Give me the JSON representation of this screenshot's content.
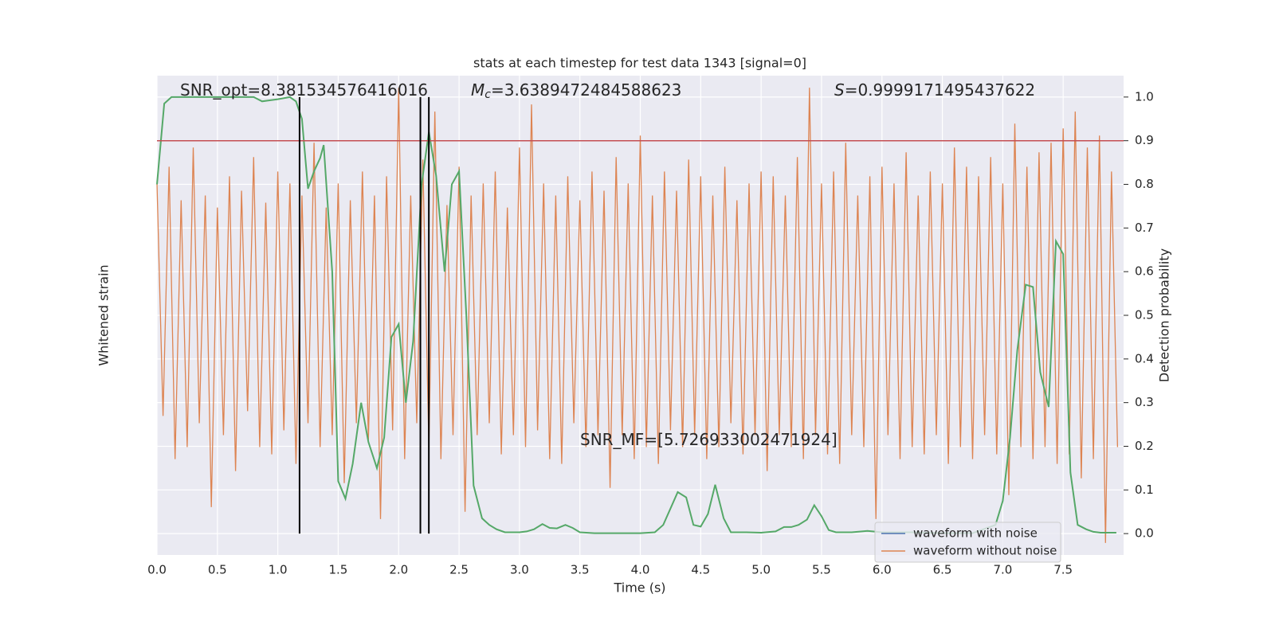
{
  "chart_data": {
    "type": "line",
    "title": "stats at each timestep for test data 1343 [signal=0]",
    "xlabel": "Time (s)",
    "ylabel": "Whitened strain",
    "y2label": "Detection probability",
    "xlim": [
      0,
      8
    ],
    "xticks": [
      {
        "value": 0,
        "label": "0.0"
      },
      0.5,
      {
        "value": 1,
        "label": "1.0"
      },
      1.5,
      {
        "value": 2,
        "label": "2.0"
      },
      2.5,
      {
        "value": 3,
        "label": "3.0"
      },
      3.5,
      {
        "value": 4,
        "label": "4.0"
      },
      4.5,
      {
        "value": 5,
        "label": "5.0"
      },
      5.5,
      {
        "value": 6,
        "label": "6.0"
      },
      6.5,
      {
        "value": 7,
        "label": "7.0"
      },
      7.5
    ],
    "ylim": [
      -1,
      1
    ],
    "y2lim": [
      -0.049,
      1.049
    ],
    "y2ticks": [
      {
        "value": 0,
        "label": "0.0"
      },
      0.1,
      0.2,
      0.3,
      0.4,
      0.5,
      0.6,
      0.7,
      0.8,
      0.9,
      {
        "value": 1,
        "label": "1.0"
      }
    ],
    "grid": true,
    "legend": "lower right",
    "series": [
      {
        "name": "waveform with noise",
        "color": "#4c72b0"
      },
      {
        "name": "waveform without noise",
        "color": "#dd8452",
        "x": [
          0,
          0.05,
          0.1,
          0.15,
          0.2,
          0.25,
          0.3,
          0.35,
          0.4,
          0.45,
          0.5,
          0.55,
          0.6,
          0.65,
          0.7,
          0.75,
          0.8,
          0.85,
          0.9,
          0.95,
          1,
          1.05,
          1.1,
          1.15,
          1.2,
          1.25,
          1.3,
          1.35,
          1.4,
          1.45,
          1.5,
          1.55,
          1.6,
          1.65,
          1.7,
          1.75,
          1.8,
          1.85,
          1.9,
          1.95,
          2,
          2.05,
          2.1,
          2.15,
          2.2,
          2.25,
          2.3,
          2.35,
          2.4,
          2.45,
          2.5,
          2.55,
          2.6,
          2.65,
          2.7,
          2.75,
          2.8,
          2.85,
          2.9,
          2.95,
          3,
          3.05,
          3.1,
          3.15,
          3.2,
          3.25,
          3.3,
          3.35,
          3.4,
          3.45,
          3.5,
          3.55,
          3.6,
          3.65,
          3.7,
          3.75,
          3.8,
          3.85,
          3.9,
          3.95,
          4,
          4.05,
          4.1,
          4.15,
          4.2,
          4.25,
          4.3,
          4.35,
          4.4,
          4.45,
          4.5,
          4.55,
          4.6,
          4.65,
          4.7,
          4.75,
          4.8,
          4.85,
          4.9,
          4.95,
          5,
          5.05,
          5.1,
          5.15,
          5.2,
          5.25,
          5.3,
          5.35,
          5.4,
          5.45,
          5.5,
          5.55,
          5.6,
          5.65,
          5.7,
          5.75,
          5.8,
          5.85,
          5.9,
          5.95,
          6,
          6.05,
          6.1,
          6.15,
          6.2,
          6.25,
          6.3,
          6.35,
          6.4,
          6.45,
          6.5,
          6.55,
          6.6,
          6.65,
          6.7,
          6.75,
          6.8,
          6.85,
          6.9,
          6.95,
          7,
          7.05,
          7.1,
          7.15,
          7.2,
          7.25,
          7.3,
          7.35,
          7.4,
          7.45,
          7.5,
          7.55,
          7.6,
          7.65,
          7.7,
          7.75,
          7.8,
          7.85,
          7.9,
          7.95
        ],
        "values": [
          0.55,
          -0.42,
          0.62,
          -0.6,
          0.48,
          -0.55,
          0.7,
          -0.45,
          0.5,
          -0.8,
          0.45,
          -0.5,
          0.58,
          -0.65,
          0.52,
          -0.4,
          0.66,
          -0.55,
          0.47,
          -0.58,
          0.6,
          -0.48,
          0.55,
          -0.62,
          0.5,
          -0.45,
          0.72,
          -0.55,
          0.45,
          -0.5,
          0.55,
          -0.7,
          0.48,
          -0.45,
          0.6,
          -0.52,
          0.5,
          -0.85,
          0.58,
          -0.48,
          0.95,
          -0.6,
          0.5,
          -0.45,
          0.65,
          -0.55,
          0.85,
          -0.6,
          0.46,
          -0.5,
          0.62,
          -0.82,
          0.5,
          -0.5,
          0.55,
          -0.45,
          0.6,
          -0.58,
          0.45,
          -0.5,
          0.7,
          -0.55,
          0.88,
          -0.48,
          0.55,
          -0.6,
          0.5,
          -0.62,
          0.58,
          -0.45,
          0.48,
          -0.55,
          0.6,
          -0.5,
          0.52,
          -0.72,
          0.66,
          -0.5,
          0.55,
          -0.6,
          0.75,
          -0.55,
          0.5,
          -0.62,
          0.6,
          -0.48,
          0.52,
          -0.55,
          0.65,
          -0.5,
          0.58,
          -0.6,
          0.5,
          -0.55,
          0.62,
          -0.45,
          0.48,
          -0.58,
          0.55,
          -0.5,
          0.6,
          -0.65,
          0.58,
          -0.5,
          0.5,
          -0.55,
          0.66,
          -0.6,
          0.95,
          -0.5,
          0.55,
          -0.58,
          0.6,
          -0.62,
          0.72,
          -0.5,
          0.5,
          -0.55,
          0.58,
          -0.85,
          0.62,
          -0.5,
          0.55,
          -0.6,
          0.68,
          -0.55,
          0.5,
          -0.58,
          0.6,
          -0.5,
          0.55,
          -0.62,
          0.7,
          -0.55,
          0.62,
          -0.6,
          0.58,
          -0.5,
          0.66,
          -0.58,
          0.55,
          -0.75,
          0.8,
          -0.55,
          0.62,
          -0.6,
          0.68,
          -0.55,
          0.72,
          -0.62,
          0.78,
          -0.58,
          0.85,
          -0.68,
          0.7,
          -0.6,
          0.75,
          -0.95,
          0.6,
          -0.55
        ]
      },
      {
        "color": "#55a868",
        "axis": "y2",
        "x": [
          0,
          0.06,
          0.12,
          0.5,
          0.8,
          0.87,
          1,
          1.1,
          1.15,
          1.2,
          1.25,
          1.3,
          1.35,
          1.38,
          1.45,
          1.5,
          1.56,
          1.62,
          1.69,
          1.75,
          1.82,
          1.88,
          1.94,
          2,
          2.06,
          2.12,
          2.19,
          2.25,
          2.31,
          2.38,
          2.44,
          2.5,
          2.56,
          2.62,
          2.69,
          2.75,
          2.81,
          2.88,
          3,
          3.06,
          3.12,
          3.19,
          3.25,
          3.31,
          3.38,
          3.44,
          3.5,
          3.62,
          4,
          4.12,
          4.19,
          4.31,
          4.38,
          4.44,
          4.5,
          4.56,
          4.62,
          4.69,
          4.75,
          4.88,
          5,
          5.12,
          5.19,
          5.25,
          5.31,
          5.38,
          5.44,
          5.5,
          5.56,
          5.62,
          5.75,
          5.88,
          6,
          6.12,
          6.25,
          6.5,
          6.75,
          6.94,
          7,
          7.06,
          7.12,
          7.19,
          7.25,
          7.31,
          7.38,
          7.44,
          7.5,
          7.56,
          7.62,
          7.69,
          7.75,
          7.81,
          7.94
        ],
        "values": [
          0.8,
          0.985,
          1,
          1,
          1,
          0.99,
          0.995,
          1,
          0.99,
          0.95,
          0.79,
          0.83,
          0.86,
          0.89,
          0.6,
          0.12,
          0.08,
          0.16,
          0.3,
          0.21,
          0.15,
          0.22,
          0.45,
          0.48,
          0.3,
          0.44,
          0.8,
          0.92,
          0.82,
          0.6,
          0.8,
          0.83,
          0.5,
          0.11,
          0.035,
          0.02,
          0.01,
          0.003,
          0.003,
          0.005,
          0.01,
          0.022,
          0.013,
          0.012,
          0.02,
          0.013,
          0.003,
          0.001,
          0.001,
          0.003,
          0.02,
          0.095,
          0.083,
          0.02,
          0.016,
          0.045,
          0.112,
          0.035,
          0.003,
          0.003,
          0.002,
          0.005,
          0.015,
          0.015,
          0.02,
          0.032,
          0.065,
          0.04,
          0.008,
          0.003,
          0.003,
          0.006,
          0.003,
          0.003,
          0.003,
          0.001,
          0.001,
          0.02,
          0.075,
          0.22,
          0.42,
          0.57,
          0.565,
          0.37,
          0.29,
          0.67,
          0.64,
          0.14,
          0.02,
          0.01,
          0.004,
          0.002,
          0.002
        ]
      }
    ],
    "hline": {
      "value": 0.9,
      "color": "#c44e52",
      "axis": "y2"
    },
    "vlines": {
      "x": [
        1.18,
        2.18,
        2.25
      ],
      "color": "#000000",
      "range": [
        0,
        1
      ]
    },
    "annotations": [
      {
        "text": "SNR_opt=8.381534576416016"
      },
      {
        "symbol": "M",
        "subscript": "c",
        "text": "=3.6389472484588623"
      },
      {
        "symbol": "S",
        "text": "=0.9999171495437622"
      },
      {
        "text": "SNR_MF=[5.726933002471924]"
      }
    ]
  }
}
